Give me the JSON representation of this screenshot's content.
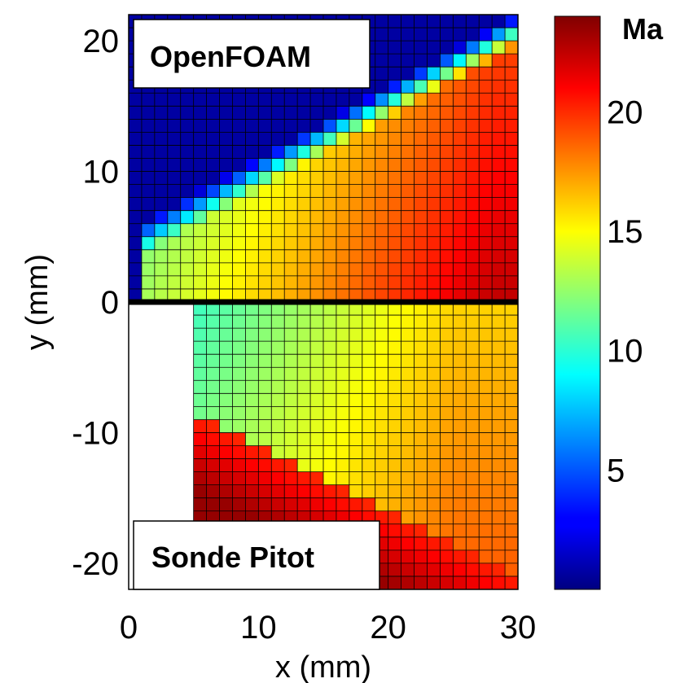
{
  "chart_data": {
    "type": "heatmap",
    "title": "",
    "xlabel": "x (mm)",
    "ylabel": "y (mm)",
    "xlim": [
      0,
      30
    ],
    "ylim": [
      -22,
      22
    ],
    "x_ticks": [
      "0",
      "10",
      "20",
      "30"
    ],
    "y_ticks": [
      "20",
      "10",
      "0",
      "-10",
      "-20"
    ],
    "colorbar": {
      "label": "Ma",
      "range": [
        0,
        24
      ],
      "ticks": [
        "5",
        "10",
        "15",
        "20"
      ],
      "colormap": "jet"
    },
    "grid": true,
    "cell_size_mm": 1,
    "annotations": {
      "top_panel": "OpenFOAM",
      "bottom_panel": "Sonde Pitot"
    },
    "panels": [
      {
        "name": "OpenFOAM",
        "y_range": [
          0,
          22
        ],
        "description_values": {
          "core_max_Ma": 21.5,
          "near_axis_Ma": 9
        }
      },
      {
        "name": "Sonde Pitot",
        "y_range": [
          -22,
          0
        ],
        "x_start": 5,
        "description_values": {
          "lower_region_max_Ma": 23,
          "center_Ma": 14
        }
      }
    ],
    "separator_y": 0
  }
}
